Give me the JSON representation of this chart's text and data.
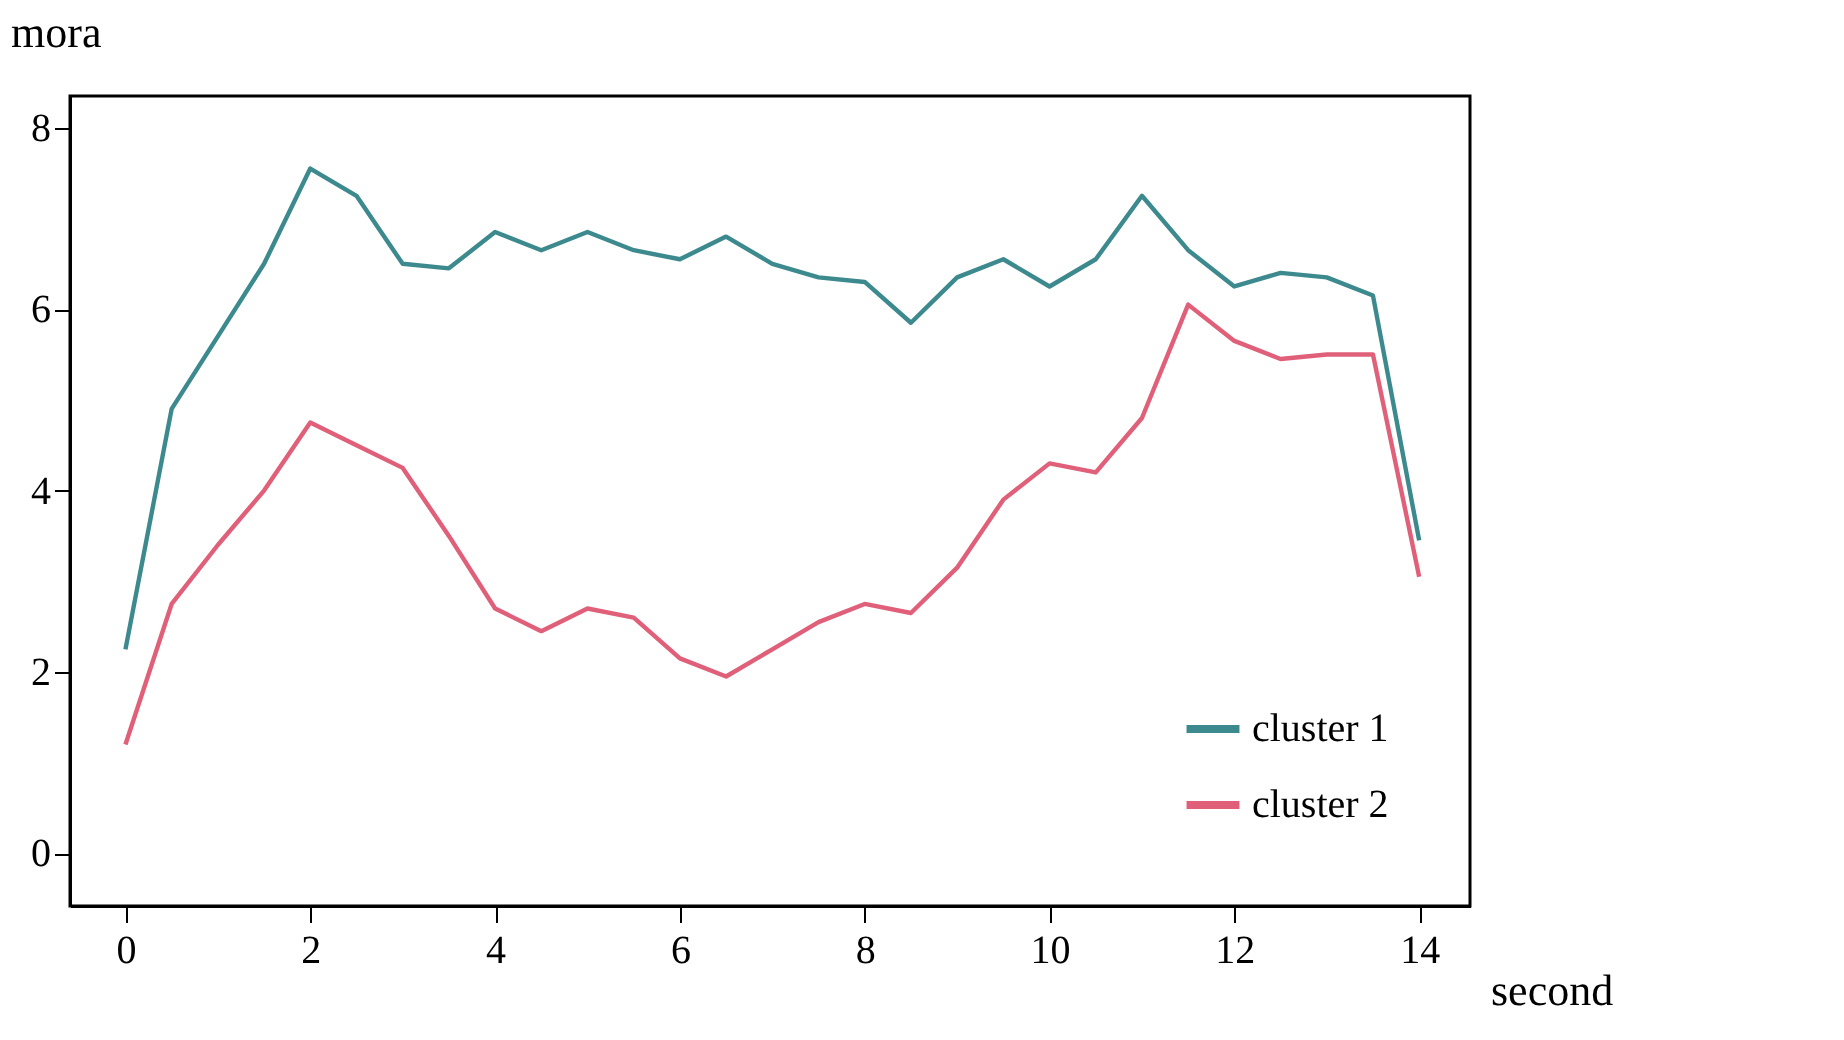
{
  "chart_data": {
    "type": "line",
    "xlabel": "second",
    "ylabel": "mora",
    "x": [
      0,
      0.5,
      1,
      1.5,
      2,
      2.5,
      3,
      3.5,
      4,
      4.5,
      5,
      5.5,
      6,
      6.5,
      7,
      7.5,
      8,
      8.5,
      9,
      9.5,
      10,
      10.5,
      11,
      11.5,
      12,
      12.5,
      13,
      13.5,
      14
    ],
    "series": [
      {
        "name": "cluster 1",
        "color": "#3d8a8e",
        "values": [
          2.25,
          4.9,
          5.7,
          6.5,
          7.55,
          7.25,
          6.5,
          6.45,
          6.85,
          6.65,
          6.85,
          6.65,
          6.55,
          6.8,
          6.5,
          6.35,
          6.3,
          5.85,
          6.35,
          6.55,
          6.25,
          6.55,
          7.25,
          6.65,
          6.25,
          6.4,
          6.35,
          6.15,
          3.45
        ]
      },
      {
        "name": "cluster 2",
        "color": "#e0607a",
        "values": [
          1.2,
          2.75,
          3.4,
          4.0,
          4.75,
          4.5,
          4.25,
          3.5,
          2.7,
          2.45,
          2.7,
          2.6,
          2.15,
          1.95,
          2.25,
          2.55,
          2.75,
          2.65,
          3.15,
          3.9,
          4.3,
          4.2,
          4.8,
          6.05,
          5.65,
          5.45,
          5.5,
          5.5,
          3.05
        ]
      }
    ],
    "xlim": [
      -0.6,
      14.55
    ],
    "xticks": [
      0,
      2,
      4,
      6,
      8,
      10,
      12,
      14
    ],
    "ylim": [
      -0.58,
      8.35
    ],
    "yticks": [
      0,
      2,
      4,
      6,
      8
    ],
    "grid": false,
    "legend": "bottom right",
    "line_style": "solid",
    "marker": "none"
  }
}
